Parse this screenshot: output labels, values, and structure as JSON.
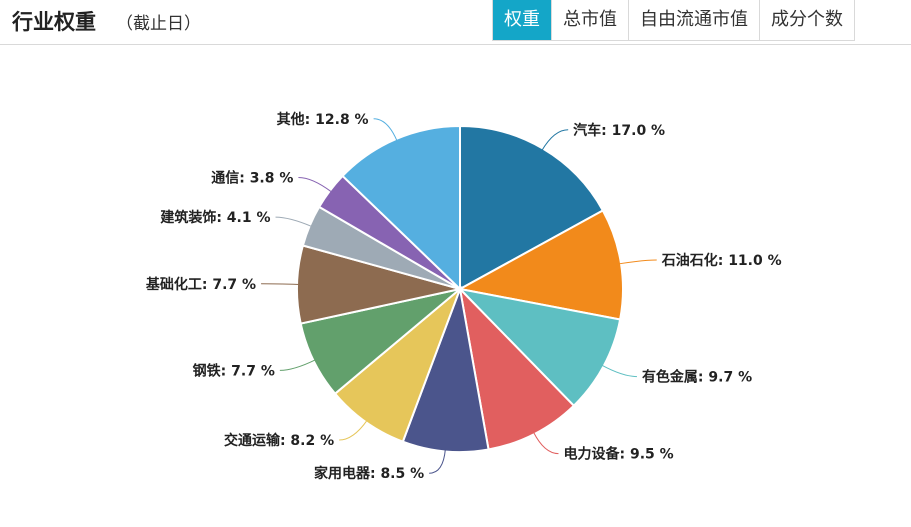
{
  "header": {
    "title": "行业权重",
    "subtitle": "（截止日）",
    "tabs": [
      {
        "label": "权重",
        "active": true
      },
      {
        "label": "总市值",
        "active": false
      },
      {
        "label": "自由流通市值",
        "active": false
      },
      {
        "label": "成分个数",
        "active": false
      }
    ]
  },
  "chart_data": {
    "type": "pie",
    "slices": [
      {
        "name": "汽车",
        "value": 17.0,
        "color": "#2277a3"
      },
      {
        "name": "石油石化",
        "value": 11.0,
        "color": "#f28a1b"
      },
      {
        "name": "有色金属",
        "value": 9.7,
        "color": "#5ebfc2"
      },
      {
        "name": "电力设备",
        "value": 9.5,
        "color": "#e15f5f"
      },
      {
        "name": "家用电器",
        "value": 8.5,
        "color": "#4b558c"
      },
      {
        "name": "交通运输",
        "value": 8.2,
        "color": "#e6c65a"
      },
      {
        "name": "钢铁",
        "value": 7.7,
        "color": "#62a06c"
      },
      {
        "name": "基础化工",
        "value": 7.7,
        "color": "#8d6b50"
      },
      {
        "name": "建筑装饰",
        "value": 4.1,
        "color": "#9eaab5"
      },
      {
        "name": "通信",
        "value": 3.8,
        "color": "#8763b2"
      },
      {
        "name": "其他",
        "value": 12.8,
        "color": "#55afe0"
      }
    ],
    "label_suffix": " %"
  }
}
